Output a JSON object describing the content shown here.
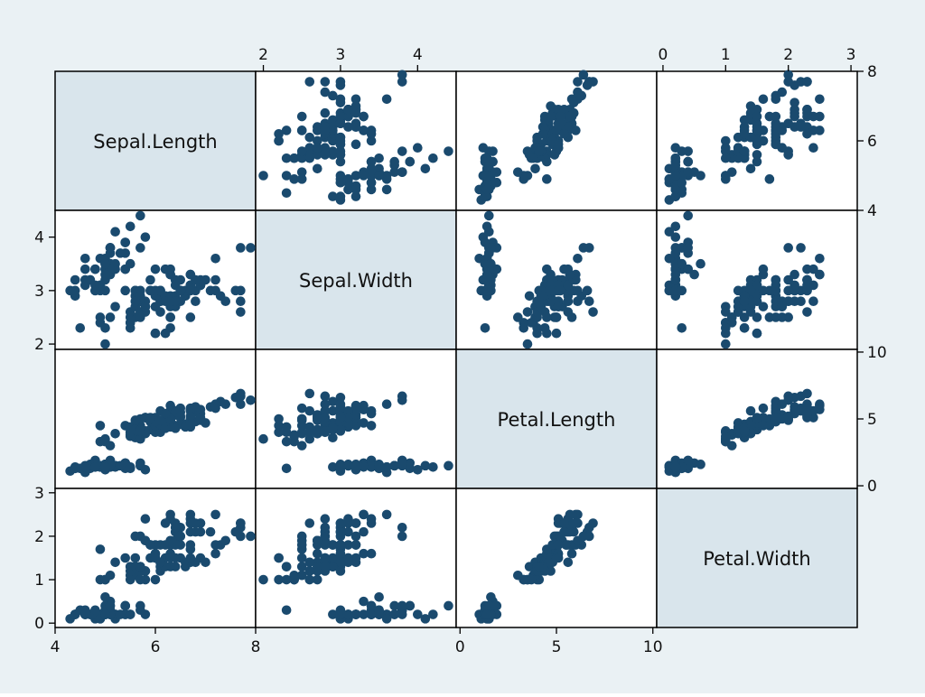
{
  "chart_data": {
    "type": "scatter",
    "subtype": "scatter-matrix",
    "colors": {
      "point": "#1a4a6e",
      "diagonal_fill": "#d9e5ec",
      "background": "#eaf1f4",
      "panel": "#ffffff"
    },
    "variables": [
      "Sepal.Length",
      "Sepal.Width",
      "Petal.Length",
      "Petal.Width"
    ],
    "ranges": {
      "Sepal.Length": [
        4,
        8
      ],
      "Sepal.Width": [
        1.9,
        4.5
      ],
      "Petal.Length": [
        -0.2,
        10.2
      ],
      "Petal.Width": [
        -0.1,
        3.1
      ]
    },
    "ticks": {
      "Sepal.Length": [
        4,
        6,
        8
      ],
      "Sepal.Width": [
        2,
        3,
        4
      ],
      "Petal.Length": [
        0,
        5,
        10
      ],
      "Petal.Width": [
        0,
        1,
        2,
        3
      ]
    },
    "tick_labels": {
      "top": [
        {
          "variable": "Sepal.Width",
          "labels": [
            "2",
            "3",
            "4"
          ]
        },
        {
          "variable": "Petal.Width",
          "labels": [
            "0",
            "1",
            "2",
            "3"
          ]
        }
      ],
      "bottom": [
        {
          "variable": "Sepal.Length",
          "labels": [
            "4",
            "6",
            "8"
          ]
        },
        {
          "variable": "Petal.Length",
          "labels": [
            "0",
            "5",
            "10"
          ]
        }
      ],
      "left": [
        {
          "variable": "Sepal.Width",
          "labels": [
            "2",
            "3",
            "4"
          ]
        },
        {
          "variable": "Petal.Width",
          "labels": [
            "0",
            "1",
            "2",
            "3"
          ]
        }
      ],
      "right": [
        {
          "variable": "Sepal.Length",
          "labels": [
            "4",
            "6",
            "8"
          ]
        },
        {
          "variable": "Petal.Length",
          "labels": [
            "0",
            "5",
            "10"
          ]
        }
      ]
    },
    "columns": [
      "Sepal.Length",
      "Sepal.Width",
      "Petal.Length",
      "Petal.Width"
    ],
    "observations": [
      [
        5.1,
        3.5,
        1.4,
        0.2
      ],
      [
        4.9,
        3.0,
        1.4,
        0.2
      ],
      [
        4.7,
        3.2,
        1.3,
        0.2
      ],
      [
        4.6,
        3.1,
        1.5,
        0.2
      ],
      [
        5.0,
        3.6,
        1.4,
        0.2
      ],
      [
        5.4,
        3.9,
        1.7,
        0.4
      ],
      [
        4.6,
        3.4,
        1.4,
        0.3
      ],
      [
        5.0,
        3.4,
        1.5,
        0.2
      ],
      [
        4.4,
        2.9,
        1.4,
        0.2
      ],
      [
        4.9,
        3.1,
        1.5,
        0.1
      ],
      [
        5.4,
        3.7,
        1.5,
        0.2
      ],
      [
        4.8,
        3.4,
        1.6,
        0.2
      ],
      [
        4.8,
        3.0,
        1.4,
        0.1
      ],
      [
        4.3,
        3.0,
        1.1,
        0.1
      ],
      [
        5.8,
        4.0,
        1.2,
        0.2
      ],
      [
        5.7,
        4.4,
        1.5,
        0.4
      ],
      [
        5.4,
        3.9,
        1.3,
        0.4
      ],
      [
        5.1,
        3.5,
        1.4,
        0.3
      ],
      [
        5.7,
        3.8,
        1.7,
        0.3
      ],
      [
        5.1,
        3.8,
        1.5,
        0.3
      ],
      [
        5.4,
        3.4,
        1.7,
        0.2
      ],
      [
        5.1,
        3.7,
        1.5,
        0.4
      ],
      [
        4.6,
        3.6,
        1.0,
        0.2
      ],
      [
        5.1,
        3.3,
        1.7,
        0.5
      ],
      [
        4.8,
        3.4,
        1.9,
        0.2
      ],
      [
        5.0,
        3.0,
        1.6,
        0.2
      ],
      [
        5.0,
        3.4,
        1.6,
        0.4
      ],
      [
        5.2,
        3.5,
        1.5,
        0.2
      ],
      [
        5.2,
        3.4,
        1.4,
        0.2
      ],
      [
        4.7,
        3.2,
        1.6,
        0.2
      ],
      [
        4.8,
        3.1,
        1.6,
        0.2
      ],
      [
        5.4,
        3.4,
        1.5,
        0.4
      ],
      [
        5.2,
        4.1,
        1.5,
        0.1
      ],
      [
        5.5,
        4.2,
        1.4,
        0.2
      ],
      [
        4.9,
        3.1,
        1.5,
        0.2
      ],
      [
        5.0,
        3.2,
        1.2,
        0.2
      ],
      [
        5.5,
        3.5,
        1.3,
        0.2
      ],
      [
        4.9,
        3.6,
        1.4,
        0.1
      ],
      [
        4.4,
        3.0,
        1.3,
        0.2
      ],
      [
        5.1,
        3.4,
        1.5,
        0.2
      ],
      [
        5.0,
        3.5,
        1.3,
        0.3
      ],
      [
        4.5,
        2.3,
        1.3,
        0.3
      ],
      [
        4.4,
        3.2,
        1.3,
        0.2
      ],
      [
        5.0,
        3.5,
        1.6,
        0.6
      ],
      [
        5.1,
        3.8,
        1.9,
        0.4
      ],
      [
        4.8,
        3.0,
        1.4,
        0.3
      ],
      [
        5.1,
        3.8,
        1.6,
        0.2
      ],
      [
        4.6,
        3.2,
        1.4,
        0.2
      ],
      [
        5.3,
        3.7,
        1.5,
        0.2
      ],
      [
        5.0,
        3.3,
        1.4,
        0.2
      ],
      [
        7.0,
        3.2,
        4.7,
        1.4
      ],
      [
        6.4,
        3.2,
        4.5,
        1.5
      ],
      [
        6.9,
        3.1,
        4.9,
        1.5
      ],
      [
        5.5,
        2.3,
        4.0,
        1.3
      ],
      [
        6.5,
        2.8,
        4.6,
        1.5
      ],
      [
        5.7,
        2.8,
        4.5,
        1.3
      ],
      [
        6.3,
        3.3,
        4.7,
        1.6
      ],
      [
        4.9,
        2.4,
        3.3,
        1.0
      ],
      [
        6.6,
        2.9,
        4.6,
        1.3
      ],
      [
        5.2,
        2.7,
        3.9,
        1.4
      ],
      [
        5.0,
        2.0,
        3.5,
        1.0
      ],
      [
        5.9,
        3.0,
        4.2,
        1.5
      ],
      [
        6.0,
        2.2,
        4.0,
        1.0
      ],
      [
        6.1,
        2.9,
        4.7,
        1.4
      ],
      [
        5.6,
        2.9,
        3.6,
        1.3
      ],
      [
        6.7,
        3.1,
        4.4,
        1.4
      ],
      [
        5.6,
        3.0,
        4.5,
        1.5
      ],
      [
        5.8,
        2.7,
        4.1,
        1.0
      ],
      [
        6.2,
        2.2,
        4.5,
        1.5
      ],
      [
        5.6,
        2.5,
        3.9,
        1.1
      ],
      [
        5.9,
        3.2,
        4.8,
        1.8
      ],
      [
        6.1,
        2.8,
        4.0,
        1.3
      ],
      [
        6.3,
        2.5,
        4.9,
        1.5
      ],
      [
        6.1,
        2.8,
        4.7,
        1.2
      ],
      [
        6.4,
        2.9,
        4.3,
        1.3
      ],
      [
        6.6,
        3.0,
        4.4,
        1.4
      ],
      [
        6.8,
        2.8,
        4.8,
        1.4
      ],
      [
        6.7,
        3.0,
        5.0,
        1.7
      ],
      [
        6.0,
        2.9,
        4.5,
        1.5
      ],
      [
        5.7,
        2.6,
        3.5,
        1.0
      ],
      [
        5.5,
        2.4,
        3.8,
        1.1
      ],
      [
        5.5,
        2.4,
        3.7,
        1.0
      ],
      [
        5.8,
        2.7,
        3.9,
        1.2
      ],
      [
        6.0,
        2.7,
        5.1,
        1.6
      ],
      [
        5.4,
        3.0,
        4.5,
        1.5
      ],
      [
        6.0,
        3.4,
        4.5,
        1.6
      ],
      [
        6.7,
        3.1,
        4.7,
        1.5
      ],
      [
        6.3,
        2.3,
        4.4,
        1.3
      ],
      [
        5.6,
        3.0,
        4.1,
        1.3
      ],
      [
        5.5,
        2.5,
        4.0,
        1.3
      ],
      [
        5.5,
        2.6,
        4.4,
        1.2
      ],
      [
        6.1,
        3.0,
        4.6,
        1.4
      ],
      [
        5.8,
        2.6,
        4.0,
        1.2
      ],
      [
        5.0,
        2.3,
        3.3,
        1.0
      ],
      [
        5.6,
        2.7,
        4.2,
        1.3
      ],
      [
        5.7,
        3.0,
        4.2,
        1.2
      ],
      [
        5.7,
        2.9,
        4.2,
        1.3
      ],
      [
        6.2,
        2.9,
        4.3,
        1.3
      ],
      [
        5.1,
        2.5,
        3.0,
        1.1
      ],
      [
        5.7,
        2.8,
        4.1,
        1.3
      ],
      [
        6.3,
        3.3,
        6.0,
        2.5
      ],
      [
        5.8,
        2.7,
        5.1,
        1.9
      ],
      [
        7.1,
        3.0,
        5.9,
        2.1
      ],
      [
        6.3,
        2.9,
        5.6,
        1.8
      ],
      [
        6.5,
        3.0,
        5.8,
        2.2
      ],
      [
        7.6,
        3.0,
        6.6,
        2.1
      ],
      [
        4.9,
        2.5,
        4.5,
        1.7
      ],
      [
        7.3,
        2.9,
        6.3,
        1.8
      ],
      [
        6.7,
        2.5,
        5.8,
        1.8
      ],
      [
        7.2,
        3.6,
        6.1,
        2.5
      ],
      [
        6.5,
        3.2,
        5.1,
        2.0
      ],
      [
        6.4,
        2.7,
        5.3,
        1.9
      ],
      [
        6.8,
        3.0,
        5.5,
        2.1
      ],
      [
        5.7,
        2.5,
        5.0,
        2.0
      ],
      [
        5.8,
        2.8,
        5.1,
        2.4
      ],
      [
        6.4,
        3.2,
        5.3,
        2.3
      ],
      [
        6.5,
        3.0,
        5.5,
        1.8
      ],
      [
        7.7,
        3.8,
        6.7,
        2.2
      ],
      [
        7.7,
        2.6,
        6.9,
        2.3
      ],
      [
        6.0,
        2.2,
        5.0,
        1.5
      ],
      [
        6.9,
        3.2,
        5.7,
        2.3
      ],
      [
        5.6,
        2.8,
        4.9,
        2.0
      ],
      [
        7.7,
        2.8,
        6.7,
        2.0
      ],
      [
        6.3,
        2.7,
        4.9,
        1.8
      ],
      [
        6.7,
        3.3,
        5.7,
        2.1
      ],
      [
        7.2,
        3.2,
        6.0,
        1.8
      ],
      [
        6.2,
        2.8,
        4.8,
        1.8
      ],
      [
        6.1,
        3.0,
        4.9,
        1.8
      ],
      [
        6.4,
        2.8,
        5.6,
        2.1
      ],
      [
        7.2,
        3.0,
        5.8,
        1.6
      ],
      [
        7.4,
        2.8,
        6.1,
        1.9
      ],
      [
        7.9,
        3.8,
        6.4,
        2.0
      ],
      [
        6.4,
        2.8,
        5.6,
        2.2
      ],
      [
        6.3,
        2.8,
        5.1,
        1.5
      ],
      [
        6.1,
        2.6,
        5.6,
        1.4
      ],
      [
        7.7,
        3.0,
        6.1,
        2.3
      ],
      [
        6.3,
        3.4,
        5.6,
        2.4
      ],
      [
        6.4,
        3.1,
        5.5,
        1.8
      ],
      [
        6.0,
        3.0,
        4.8,
        1.8
      ],
      [
        6.9,
        3.1,
        5.4,
        2.1
      ],
      [
        6.7,
        3.1,
        5.6,
        2.4
      ],
      [
        6.9,
        3.1,
        5.1,
        2.3
      ],
      [
        5.8,
        2.7,
        5.1,
        1.9
      ],
      [
        6.8,
        3.2,
        5.9,
        2.3
      ],
      [
        6.7,
        3.3,
        5.7,
        2.5
      ],
      [
        6.7,
        3.0,
        5.2,
        2.3
      ],
      [
        6.3,
        2.5,
        5.0,
        1.9
      ],
      [
        6.5,
        3.0,
        5.2,
        2.0
      ],
      [
        6.2,
        3.4,
        5.4,
        2.3
      ],
      [
        5.9,
        3.0,
        5.1,
        1.8
      ]
    ]
  }
}
